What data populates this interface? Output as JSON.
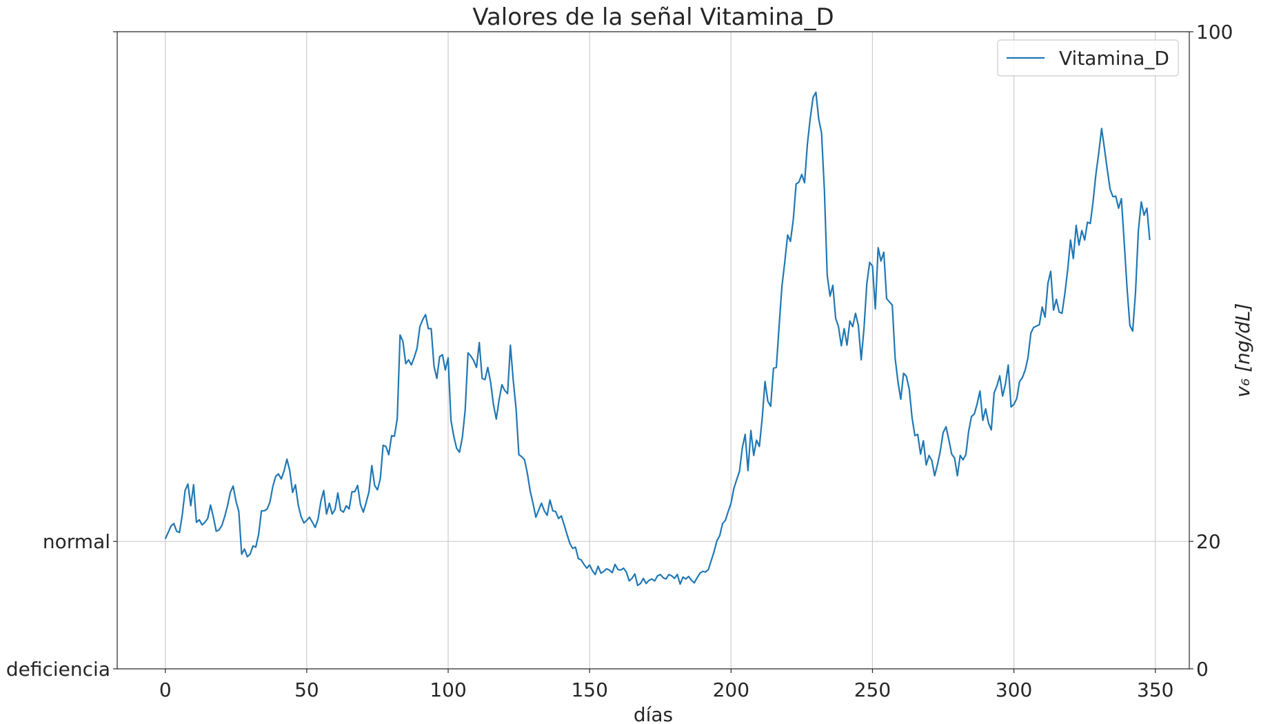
{
  "chart_data": {
    "type": "line",
    "title": "Valores de la señal Vitamina_D",
    "xlabel": "días",
    "ylabel_right": "v₆ [ng/dL]",
    "xlim": [
      -17,
      362
    ],
    "ylim": [
      0,
      100
    ],
    "x_ticks": [
      0,
      50,
      100,
      150,
      200,
      250,
      300,
      350
    ],
    "y_ticks_right": [
      0,
      20,
      100
    ],
    "y_ticks_left": [
      {
        "value": 0,
        "label": "deficiencia"
      },
      {
        "value": 20,
        "label": "normal"
      }
    ],
    "grid": true,
    "legend_position": "top-right",
    "series": [
      {
        "name": "Vitamina_D",
        "color": "#1f77b4",
        "x_start": 0,
        "x_step": 1,
        "values": [
          20.4,
          21.4,
          22.4,
          22.8,
          21.6,
          21.4,
          24.2,
          28.0,
          29.0,
          25.6,
          28.9,
          23.0,
          23.4,
          22.6,
          23.0,
          23.6,
          25.7,
          23.8,
          21.6,
          21.8,
          22.5,
          23.9,
          25.6,
          27.7,
          28.7,
          26.3,
          24.7,
          18.0,
          18.8,
          17.6,
          18.0,
          19.3,
          19.1,
          21.1,
          24.8,
          24.8,
          25.1,
          26.2,
          28.6,
          30.2,
          30.6,
          29.8,
          31.1,
          32.9,
          31.1,
          27.7,
          28.9,
          25.7,
          23.9,
          22.9,
          23.3,
          23.8,
          23.0,
          22.2,
          23.5,
          26.3,
          28.0,
          24.3,
          26.0,
          24.3,
          25.0,
          27.6,
          24.9,
          24.6,
          25.6,
          25.1,
          27.8,
          27.8,
          28.8,
          25.8,
          24.6,
          26.1,
          27.8,
          31.9,
          28.8,
          28.1,
          29.8,
          35.1,
          34.9,
          33.6,
          36.6,
          36.5,
          39.3,
          52.4,
          51.4,
          47.9,
          48.5,
          47.7,
          48.9,
          50.3,
          53.7,
          54.8,
          55.6,
          53.4,
          53.4,
          47.5,
          45.6,
          49.0,
          49.3,
          46.9,
          48.8,
          39.0,
          36.5,
          34.6,
          34.0,
          36.3,
          40.6,
          49.6,
          49.1,
          48.4,
          47.3,
          51.2,
          45.6,
          45.4,
          47.3,
          45.0,
          41.5,
          39.2,
          42.2,
          44.6,
          43.7,
          43.2,
          50.8,
          45.3,
          40.9,
          33.6,
          33.3,
          32.8,
          30.7,
          27.9,
          26.0,
          23.8,
          24.9,
          26.0,
          24.8,
          24.1,
          26.5,
          24.8,
          24.7,
          23.6,
          24.0,
          22.6,
          21.1,
          19.7,
          18.9,
          19.1,
          17.3,
          17.1,
          16.4,
          15.8,
          16.3,
          15.4,
          14.8,
          16.1,
          15.0,
          15.3,
          15.7,
          15.5,
          15.1,
          16.4,
          15.6,
          15.5,
          15.8,
          15.2,
          13.8,
          14.2,
          14.9,
          13.1,
          13.4,
          14.2,
          13.4,
          13.9,
          14.1,
          13.8,
          14.6,
          14.8,
          14.3,
          14.1,
          14.8,
          14.6,
          14.2,
          14.8,
          13.3,
          14.4,
          14.1,
          14.5,
          13.9,
          13.5,
          14.3,
          15.0,
          15.3,
          15.2,
          15.6,
          17.0,
          18.4,
          20.1,
          20.9,
          22.8,
          23.3,
          24.7,
          26.0,
          28.3,
          29.7,
          31.0,
          34.7,
          36.8,
          31.1,
          37.4,
          33.5,
          35.9,
          34.9,
          39.3,
          45.1,
          42.0,
          41.2,
          47.2,
          47.3,
          53.9,
          60.1,
          63.9,
          68.1,
          67.1,
          70.5,
          76.1,
          76.4,
          77.6,
          76.3,
          82.4,
          86.4,
          89.7,
          90.5,
          86.3,
          84.1,
          75.2,
          61.8,
          58.5,
          60.2,
          55.0,
          53.7,
          50.7,
          53.4,
          50.8,
          54.6,
          53.7,
          55.8,
          53.9,
          48.5,
          53.5,
          60.5,
          63.8,
          63.2,
          56.5,
          66.1,
          64.0,
          65.4,
          58.1,
          57.6,
          57.1,
          48.8,
          45.1,
          42.3,
          46.4,
          45.9,
          43.9,
          39.4,
          36.6,
          36.8,
          33.7,
          35.8,
          32.0,
          33.5,
          32.7,
          30.3,
          32.1,
          34.2,
          37.1,
          38.0,
          35.9,
          33.7,
          33.1,
          30.3,
          33.5,
          32.8,
          33.6,
          37.3,
          39.6,
          40.0,
          41.6,
          43.6,
          39.0,
          40.8,
          38.6,
          37.5,
          43.3,
          44.4,
          46.0,
          42.8,
          44.7,
          47.7,
          41.1,
          41.5,
          42.4,
          45.1,
          45.7,
          46.9,
          48.9,
          52.7,
          53.6,
          53.8,
          54.0,
          56.8,
          55.2,
          60.5,
          62.4,
          56.3,
          58.0,
          56.0,
          55.8,
          58.9,
          62.6,
          67.3,
          64.4,
          69.6,
          66.5,
          68.8,
          67.3,
          70.1,
          69.9,
          73.4,
          77.7,
          81.0,
          84.8,
          81.7,
          78.4,
          75.3,
          74.1,
          74.2,
          72.3,
          73.8,
          66.9,
          59.8,
          53.9,
          53.0,
          59.1,
          68.7,
          73.3,
          71.2,
          72.3,
          67.3
        ]
      }
    ]
  }
}
